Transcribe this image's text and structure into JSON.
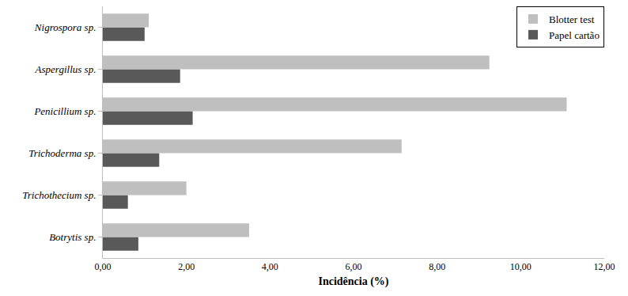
{
  "chart_data": {
    "type": "bar",
    "orientation": "horizontal",
    "categories": [
      "Botrytis sp.",
      "Trichothecium sp.",
      "Trichoderma sp.",
      "Penicillium sp.",
      "Aspergillus sp.",
      "Nigrospora sp."
    ],
    "series": [
      {
        "name": "Blotter test",
        "color": "#bfbfbf",
        "values": [
          3.5,
          2.0,
          7.15,
          11.1,
          9.25,
          1.1
        ]
      },
      {
        "name": "Papel cartão",
        "color": "#595959",
        "values": [
          0.85,
          0.6,
          1.35,
          2.15,
          1.85,
          1.0
        ]
      }
    ],
    "x_label": "Incidência (%)",
    "xlim": [
      0,
      12
    ],
    "xticks": [
      {
        "value": 0,
        "label": "0,00"
      },
      {
        "value": 2,
        "label": "2,00"
      },
      {
        "value": 4,
        "label": "4,00"
      },
      {
        "value": 6,
        "label": "6,00"
      },
      {
        "value": 8,
        "label": "8,00"
      },
      {
        "value": 10,
        "label": "10,00"
      },
      {
        "value": 12,
        "label": "12,00"
      }
    ],
    "grid": false,
    "legend": "upper right"
  }
}
